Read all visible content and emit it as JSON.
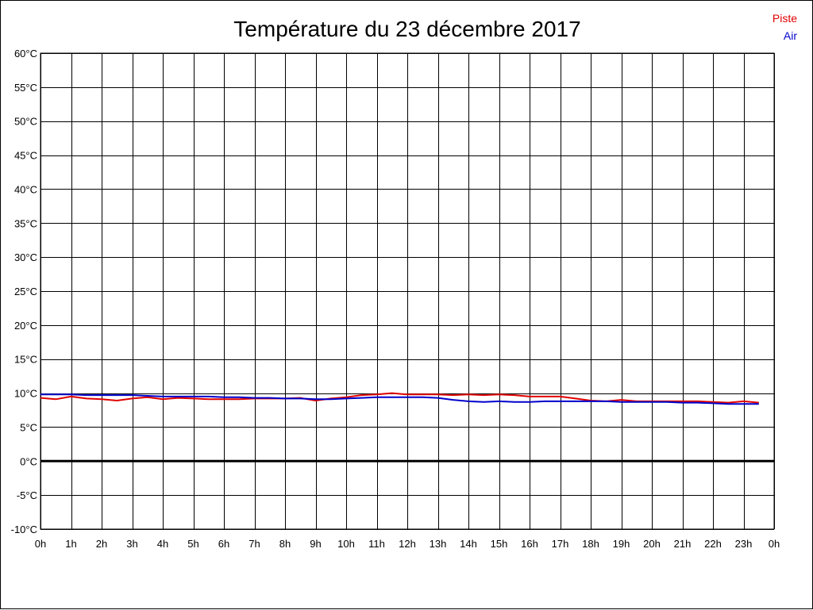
{
  "chart_data": {
    "type": "line",
    "title": "Température du 23 décembre 2017",
    "x_ticks": [
      "0h",
      "1h",
      "2h",
      "3h",
      "4h",
      "5h",
      "6h",
      "7h",
      "8h",
      "9h",
      "10h",
      "11h",
      "12h",
      "13h",
      "14h",
      "15h",
      "16h",
      "17h",
      "18h",
      "19h",
      "20h",
      "21h",
      "22h",
      "23h",
      "0h"
    ],
    "y_ticks": [
      "-10°C",
      "-5°C",
      "0°C",
      "5°C",
      "10°C",
      "15°C",
      "20°C",
      "25°C",
      "30°C",
      "35°C",
      "40°C",
      "45°C",
      "50°C",
      "55°C",
      "60°C"
    ],
    "xlim": [
      0,
      24
    ],
    "ylim": [
      -10,
      60
    ],
    "grid": true,
    "zero_line": true,
    "legend_position": "top-right",
    "series": [
      {
        "name": "Piste",
        "color": "#e00000",
        "x": [
          0,
          0.5,
          1,
          1.5,
          2,
          2.5,
          3,
          3.5,
          4,
          4.5,
          5,
          5.5,
          6,
          6.5,
          7,
          7.5,
          8,
          8.5,
          9,
          9.5,
          10,
          10.5,
          11,
          11.5,
          12,
          12.5,
          13,
          13.5,
          14,
          14.5,
          15,
          15.5,
          16,
          16.5,
          17,
          17.5,
          18,
          18.5,
          19,
          19.5,
          20,
          20.5,
          21,
          21.5,
          22,
          22.5,
          23,
          23.5
        ],
        "values": [
          9.3,
          9.1,
          9.5,
          9.2,
          9.1,
          8.9,
          9.2,
          9.4,
          9.1,
          9.3,
          9.2,
          9.1,
          9.1,
          9.1,
          9.2,
          9.2,
          9.2,
          9.3,
          8.9,
          9.2,
          9.4,
          9.7,
          9.8,
          10.0,
          9.8,
          9.8,
          9.8,
          9.7,
          9.8,
          9.7,
          9.8,
          9.7,
          9.5,
          9.5,
          9.5,
          9.2,
          8.9,
          8.8,
          9.0,
          8.8,
          8.8,
          8.8,
          8.8,
          8.8,
          8.7,
          8.6,
          8.8,
          8.6
        ]
      },
      {
        "name": "Air",
        "color": "#0000cc",
        "x": [
          0,
          0.5,
          1,
          1.5,
          2,
          2.5,
          3,
          3.5,
          4,
          4.5,
          5,
          5.5,
          6,
          6.5,
          7,
          7.5,
          8,
          8.5,
          9,
          9.5,
          10,
          10.5,
          11,
          11.5,
          12,
          12.5,
          13,
          13.5,
          14,
          14.5,
          15,
          15.5,
          16,
          16.5,
          17,
          17.5,
          18,
          18.5,
          19,
          19.5,
          20,
          20.5,
          21,
          21.5,
          22,
          22.5,
          23,
          23.5
        ],
        "values": [
          9.8,
          9.8,
          9.8,
          9.7,
          9.7,
          9.7,
          9.7,
          9.6,
          9.5,
          9.5,
          9.5,
          9.5,
          9.4,
          9.4,
          9.3,
          9.3,
          9.2,
          9.2,
          9.1,
          9.1,
          9.2,
          9.3,
          9.4,
          9.4,
          9.4,
          9.4,
          9.3,
          9.0,
          8.8,
          8.7,
          8.8,
          8.7,
          8.7,
          8.8,
          8.8,
          8.8,
          8.8,
          8.8,
          8.7,
          8.7,
          8.7,
          8.7,
          8.6,
          8.6,
          8.5,
          8.4,
          8.4,
          8.4
        ]
      }
    ]
  }
}
